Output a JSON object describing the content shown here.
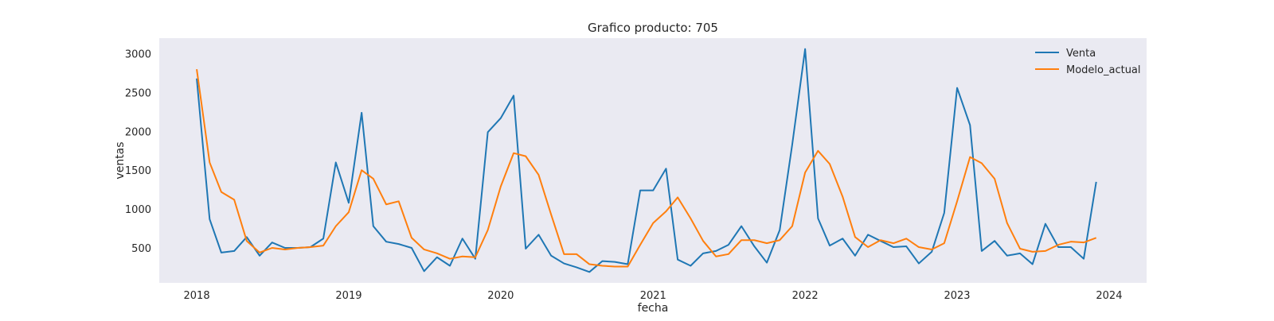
{
  "chart_data": {
    "type": "line",
    "title": "Grafico producto: 705",
    "xlabel": "fecha",
    "ylabel": "ventas",
    "x_tick_labels": [
      "2018",
      "2019",
      "2020",
      "2021",
      "2022",
      "2023",
      "2024"
    ],
    "y_tick_labels": [
      "500",
      "1000",
      "1500",
      "2000",
      "2500",
      "3000"
    ],
    "y_ticks": [
      500,
      1000,
      1500,
      2000,
      2500,
      3000
    ],
    "xlim": [
      "2017-10-03",
      "2024-03-31"
    ],
    "ylim": [
      50,
      3200
    ],
    "grid": false,
    "legend_position": "upper right",
    "dates": [
      "2018-01-01",
      "2018-02-01",
      "2018-03-01",
      "2018-04-01",
      "2018-05-01",
      "2018-06-01",
      "2018-07-01",
      "2018-08-01",
      "2018-09-01",
      "2018-10-01",
      "2018-11-01",
      "2018-12-01",
      "2019-01-01",
      "2019-02-01",
      "2019-03-01",
      "2019-04-01",
      "2019-05-01",
      "2019-06-01",
      "2019-07-01",
      "2019-08-01",
      "2019-09-01",
      "2019-10-01",
      "2019-11-01",
      "2019-12-01",
      "2020-01-01",
      "2020-02-01",
      "2020-03-01",
      "2020-04-01",
      "2020-05-01",
      "2020-06-01",
      "2020-07-01",
      "2020-08-01",
      "2020-09-01",
      "2020-10-01",
      "2020-11-01",
      "2020-12-01",
      "2021-01-01",
      "2021-02-01",
      "2021-03-01",
      "2021-04-01",
      "2021-05-01",
      "2021-06-01",
      "2021-07-01",
      "2021-08-01",
      "2021-09-01",
      "2021-10-01",
      "2021-11-01",
      "2021-12-01",
      "2022-01-01",
      "2022-02-01",
      "2022-03-01",
      "2022-04-01",
      "2022-05-01",
      "2022-06-01",
      "2022-07-01",
      "2022-08-01",
      "2022-09-01",
      "2022-10-01",
      "2022-11-01",
      "2022-12-01",
      "2023-01-01",
      "2023-02-01",
      "2023-03-01",
      "2023-04-01",
      "2023-05-01",
      "2023-06-01",
      "2023-07-01",
      "2023-08-01",
      "2023-09-01",
      "2023-10-01",
      "2023-11-01",
      "2023-12-01"
    ],
    "series": [
      {
        "name": "Venta",
        "color": "#1f77b4",
        "values": [
          2680,
          870,
          440,
          460,
          640,
          400,
          570,
          500,
          500,
          510,
          620,
          1600,
          1080,
          2240,
          780,
          580,
          550,
          500,
          200,
          380,
          270,
          620,
          360,
          1990,
          2170,
          2460,
          490,
          670,
          400,
          300,
          250,
          190,
          330,
          320,
          290,
          1240,
          1240,
          1520,
          350,
          270,
          430,
          460,
          540,
          780,
          520,
          310,
          730,
          1830,
          3060,
          880,
          530,
          620,
          400,
          670,
          590,
          510,
          520,
          300,
          450,
          950,
          2560,
          2080,
          460,
          590,
          400,
          430,
          290,
          810,
          510,
          510,
          360,
          1350
        ],
        "line": true
      },
      {
        "name": "Modelo_actual",
        "color": "#ff7f0e",
        "values": [
          2800,
          1600,
          1220,
          1120,
          590,
          440,
          500,
          480,
          500,
          510,
          530,
          780,
          960,
          1500,
          1390,
          1060,
          1100,
          630,
          480,
          430,
          360,
          390,
          380,
          730,
          1290,
          1720,
          1680,
          1440,
          930,
          420,
          420,
          290,
          270,
          260,
          260,
          540,
          820,
          970,
          1150,
          880,
          590,
          390,
          420,
          600,
          600,
          560,
          600,
          780,
          1470,
          1750,
          1580,
          1160,
          640,
          510,
          600,
          560,
          620,
          510,
          480,
          560,
          1100,
          1670,
          1590,
          1390,
          820,
          490,
          450,
          460,
          540,
          580,
          570,
          630
        ],
        "line": true
      }
    ]
  }
}
